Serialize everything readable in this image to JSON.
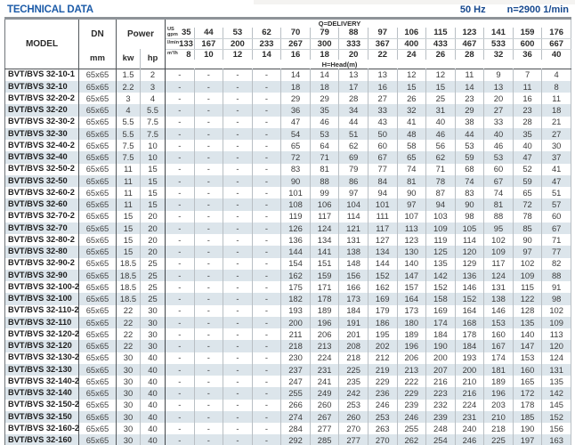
{
  "page": {
    "title": "TECHNICAL DATA",
    "frequency_label": "50 Hz",
    "speed_label": "n=2900 1/min"
  },
  "colors": {
    "title_blue": "#1c5ba8",
    "info_blue": "#17498f",
    "stripe": "#dce5eb",
    "rule_gray": "#8e9398"
  },
  "table": {
    "header": {
      "model_label": "MODEL",
      "dn_label": "DN",
      "dn_unit": "mm",
      "power_label": "Power",
      "power_unit_kw": "kw",
      "power_unit_hp": "hp",
      "delivery_label": "Q=DELIVERY",
      "head_label": "H=Head(m)",
      "unit_rows": [
        {
          "label_lines": [
            "US",
            "gpm"
          ],
          "values": [
            "35",
            "44",
            "53",
            "62",
            "70",
            "79",
            "88",
            "97",
            "106",
            "115",
            "123",
            "141",
            "159",
            "176"
          ]
        },
        {
          "label_lines": [
            "l/min"
          ],
          "values": [
            "133",
            "167",
            "200",
            "233",
            "267",
            "300",
            "333",
            "367",
            "400",
            "433",
            "467",
            "533",
            "600",
            "667"
          ]
        },
        {
          "label_lines": [
            "m³/h"
          ],
          "values": [
            "8",
            "10",
            "12",
            "14",
            "16",
            "18",
            "20",
            "22",
            "24",
            "26",
            "28",
            "32",
            "36",
            "40"
          ]
        }
      ]
    },
    "rows": [
      {
        "model": "BVT/BVS 32-10-1",
        "dn": "65x65",
        "kw": "1.5",
        "hp": "2",
        "head": [
          "-",
          "-",
          "-",
          "-",
          "14",
          "14",
          "13",
          "13",
          "12",
          "12",
          "11",
          "9",
          "7",
          "4"
        ]
      },
      {
        "model": "BVT/BVS 32-10",
        "dn": "65x65",
        "kw": "2.2",
        "hp": "3",
        "head": [
          "-",
          "-",
          "-",
          "-",
          "18",
          "18",
          "17",
          "16",
          "15",
          "15",
          "14",
          "13",
          "11",
          "8"
        ]
      },
      {
        "model": "BVT/BVS 32-20-2",
        "dn": "65x65",
        "kw": "3",
        "hp": "4",
        "head": [
          "-",
          "-",
          "-",
          "-",
          "29",
          "29",
          "28",
          "27",
          "26",
          "25",
          "23",
          "20",
          "16",
          "11"
        ]
      },
      {
        "model": "BVT/BVS 32-20",
        "dn": "65x65",
        "kw": "4",
        "hp": "5.5",
        "head": [
          "-",
          "-",
          "-",
          "-",
          "36",
          "35",
          "34",
          "33",
          "32",
          "31",
          "29",
          "27",
          "23",
          "18"
        ]
      },
      {
        "model": "BVT/BVS 32-30-2",
        "dn": "65x65",
        "kw": "5.5",
        "hp": "7.5",
        "head": [
          "-",
          "-",
          "-",
          "-",
          "47",
          "46",
          "44",
          "43",
          "41",
          "40",
          "38",
          "33",
          "28",
          "21"
        ]
      },
      {
        "model": "BVT/BVS 32-30",
        "dn": "65x65",
        "kw": "5.5",
        "hp": "7.5",
        "head": [
          "-",
          "-",
          "-",
          "-",
          "54",
          "53",
          "51",
          "50",
          "48",
          "46",
          "44",
          "40",
          "35",
          "27"
        ]
      },
      {
        "model": "BVT/BVS 32-40-2",
        "dn": "65x65",
        "kw": "7.5",
        "hp": "10",
        "head": [
          "-",
          "-",
          "-",
          "-",
          "65",
          "64",
          "62",
          "60",
          "58",
          "56",
          "53",
          "46",
          "40",
          "30"
        ]
      },
      {
        "model": "BVT/BVS 32-40",
        "dn": "65x65",
        "kw": "7.5",
        "hp": "10",
        "head": [
          "-",
          "-",
          "-",
          "-",
          "72",
          "71",
          "69",
          "67",
          "65",
          "62",
          "59",
          "53",
          "47",
          "37"
        ]
      },
      {
        "model": "BVT/BVS 32-50-2",
        "dn": "65x65",
        "kw": "11",
        "hp": "15",
        "head": [
          "-",
          "-",
          "-",
          "-",
          "83",
          "81",
          "79",
          "77",
          "74",
          "71",
          "68",
          "60",
          "52",
          "41"
        ]
      },
      {
        "model": "BVT/BVS 32-50",
        "dn": "65x65",
        "kw": "11",
        "hp": "15",
        "head": [
          "-",
          "-",
          "-",
          "-",
          "90",
          "88",
          "86",
          "84",
          "81",
          "78",
          "74",
          "67",
          "59",
          "47"
        ]
      },
      {
        "model": "BVT/BVS 32-60-2",
        "dn": "65x65",
        "kw": "11",
        "hp": "15",
        "head": [
          "-",
          "-",
          "-",
          "-",
          "101",
          "99",
          "97",
          "94",
          "90",
          "87",
          "83",
          "74",
          "65",
          "51"
        ]
      },
      {
        "model": "BVT/BVS 32-60",
        "dn": "65x65",
        "kw": "11",
        "hp": "15",
        "head": [
          "-",
          "-",
          "-",
          "-",
          "108",
          "106",
          "104",
          "101",
          "97",
          "94",
          "90",
          "81",
          "72",
          "57"
        ]
      },
      {
        "model": "BVT/BVS 32-70-2",
        "dn": "65x65",
        "kw": "15",
        "hp": "20",
        "head": [
          "-",
          "-",
          "-",
          "-",
          "119",
          "117",
          "114",
          "111",
          "107",
          "103",
          "98",
          "88",
          "78",
          "60"
        ]
      },
      {
        "model": "BVT/BVS 32-70",
        "dn": "65x65",
        "kw": "15",
        "hp": "20",
        "head": [
          "-",
          "-",
          "-",
          "-",
          "126",
          "124",
          "121",
          "117",
          "113",
          "109",
          "105",
          "95",
          "85",
          "67"
        ]
      },
      {
        "model": "BVT/BVS 32-80-2",
        "dn": "65x65",
        "kw": "15",
        "hp": "20",
        "head": [
          "-",
          "-",
          "-",
          "-",
          "136",
          "134",
          "131",
          "127",
          "123",
          "119",
          "114",
          "102",
          "90",
          "71"
        ]
      },
      {
        "model": "BVT/BVS 32-80",
        "dn": "65x65",
        "kw": "15",
        "hp": "20",
        "head": [
          "-",
          "-",
          "-",
          "-",
          "144",
          "141",
          "138",
          "134",
          "130",
          "125",
          "120",
          "109",
          "97",
          "77"
        ]
      },
      {
        "model": "BVT/BVS 32-90-2",
        "dn": "65x65",
        "kw": "18.5",
        "hp": "25",
        "head": [
          "-",
          "-",
          "-",
          "-",
          "154",
          "151",
          "148",
          "144",
          "140",
          "135",
          "129",
          "117",
          "102",
          "82"
        ]
      },
      {
        "model": "BVT/BVS 32-90",
        "dn": "65x65",
        "kw": "18.5",
        "hp": "25",
        "head": [
          "-",
          "-",
          "-",
          "-",
          "162",
          "159",
          "156",
          "152",
          "147",
          "142",
          "136",
          "124",
          "109",
          "88"
        ]
      },
      {
        "model": "BVT/BVS 32-100-2",
        "dn": "65x65",
        "kw": "18.5",
        "hp": "25",
        "head": [
          "-",
          "-",
          "-",
          "-",
          "175",
          "171",
          "166",
          "162",
          "157",
          "152",
          "146",
          "131",
          "115",
          "91"
        ]
      },
      {
        "model": "BVT/BVS 32-100",
        "dn": "65x65",
        "kw": "18.5",
        "hp": "25",
        "head": [
          "-",
          "-",
          "-",
          "-",
          "182",
          "178",
          "173",
          "169",
          "164",
          "158",
          "152",
          "138",
          "122",
          "98"
        ]
      },
      {
        "model": "BVT/BVS 32-110-2",
        "dn": "65x65",
        "kw": "22",
        "hp": "30",
        "head": [
          "-",
          "-",
          "-",
          "-",
          "193",
          "189",
          "184",
          "179",
          "173",
          "169",
          "164",
          "146",
          "128",
          "102"
        ]
      },
      {
        "model": "BVT/BVS 32-110",
        "dn": "65x65",
        "kw": "22",
        "hp": "30",
        "head": [
          "-",
          "-",
          "-",
          "-",
          "200",
          "196",
          "191",
          "186",
          "180",
          "174",
          "168",
          "153",
          "135",
          "109"
        ]
      },
      {
        "model": "BVT/BVS 32-120-2",
        "dn": "65x65",
        "kw": "22",
        "hp": "30",
        "head": [
          "-",
          "-",
          "-",
          "-",
          "211",
          "206",
          "201",
          "195",
          "189",
          "184",
          "178",
          "160",
          "140",
          "113"
        ]
      },
      {
        "model": "BVT/BVS 32-120",
        "dn": "65x65",
        "kw": "22",
        "hp": "30",
        "head": [
          "-",
          "-",
          "-",
          "-",
          "218",
          "213",
          "208",
          "202",
          "196",
          "190",
          "184",
          "167",
          "147",
          "120"
        ]
      },
      {
        "model": "BVT/BVS 32-130-2",
        "dn": "65x65",
        "kw": "30",
        "hp": "40",
        "head": [
          "-",
          "-",
          "-",
          "-",
          "230",
          "224",
          "218",
          "212",
          "206",
          "200",
          "193",
          "174",
          "153",
          "124"
        ]
      },
      {
        "model": "BVT/BVS 32-130",
        "dn": "65x65",
        "kw": "30",
        "hp": "40",
        "head": [
          "-",
          "-",
          "-",
          "-",
          "237",
          "231",
          "225",
          "219",
          "213",
          "207",
          "200",
          "181",
          "160",
          "131"
        ]
      },
      {
        "model": "BVT/BVS 32-140-2",
        "dn": "65x65",
        "kw": "30",
        "hp": "40",
        "head": [
          "-",
          "-",
          "-",
          "-",
          "247",
          "241",
          "235",
          "229",
          "222",
          "216",
          "210",
          "189",
          "165",
          "135"
        ]
      },
      {
        "model": "BVT/BVS 32-140",
        "dn": "65x65",
        "kw": "30",
        "hp": "40",
        "head": [
          "-",
          "-",
          "-",
          "-",
          "255",
          "249",
          "242",
          "236",
          "229",
          "223",
          "216",
          "196",
          "172",
          "142"
        ]
      },
      {
        "model": "BVT/BVS 32-150-2",
        "dn": "65x65",
        "kw": "30",
        "hp": "40",
        "head": [
          "-",
          "-",
          "-",
          "-",
          "266",
          "260",
          "253",
          "246",
          "239",
          "232",
          "224",
          "203",
          "178",
          "145"
        ]
      },
      {
        "model": "BVT/BVS 32-150",
        "dn": "65x65",
        "kw": "30",
        "hp": "40",
        "head": [
          "-",
          "-",
          "-",
          "-",
          "274",
          "267",
          "260",
          "253",
          "246",
          "239",
          "231",
          "210",
          "185",
          "152"
        ]
      },
      {
        "model": "BVT/BVS 32-160-2",
        "dn": "65x65",
        "kw": "30",
        "hp": "40",
        "head": [
          "-",
          "-",
          "-",
          "-",
          "284",
          "277",
          "270",
          "263",
          "255",
          "248",
          "240",
          "218",
          "190",
          "156"
        ]
      },
      {
        "model": "BVT/BVS 32-160",
        "dn": "65x65",
        "kw": "30",
        "hp": "40",
        "head": [
          "-",
          "-",
          "-",
          "-",
          "292",
          "285",
          "277",
          "270",
          "262",
          "254",
          "246",
          "225",
          "197",
          "163"
        ]
      }
    ]
  }
}
